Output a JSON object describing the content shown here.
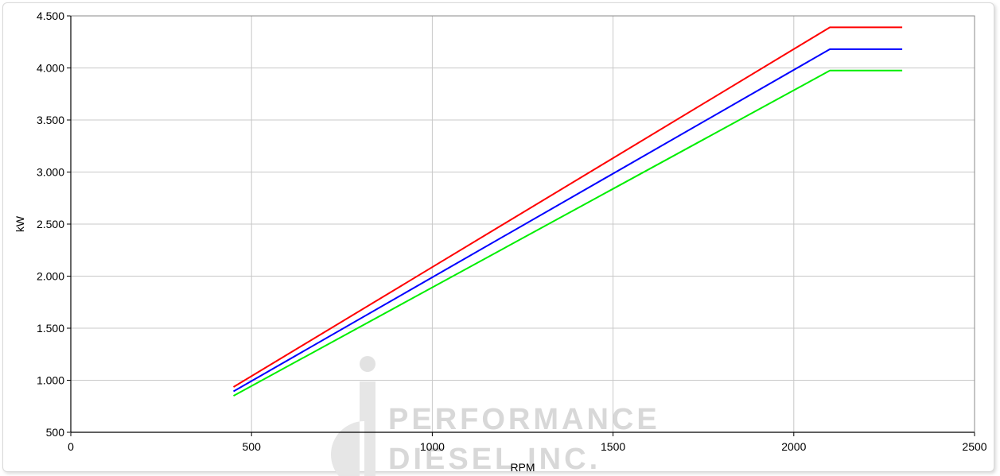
{
  "chart_data": {
    "type": "line",
    "xlabel": "RPM",
    "ylabel": "kW",
    "xlim": [
      0,
      2500
    ],
    "ylim": [
      500,
      4500
    ],
    "x_ticks": [
      "0",
      "500",
      "1000",
      "1500",
      "2000",
      "2500"
    ],
    "y_ticks": [
      "500",
      "1.000",
      "1.500",
      "2.000",
      "2.500",
      "3.000",
      "3.500",
      "4.000",
      "4.500"
    ],
    "grid": true,
    "series": [
      {
        "color": "#ff0000",
        "points": [
          [
            450,
            935
          ],
          [
            2100,
            4390
          ],
          [
            2300,
            4390
          ]
        ]
      },
      {
        "color": "#0000ff",
        "points": [
          [
            450,
            893
          ],
          [
            2100,
            4180
          ],
          [
            2300,
            4180
          ]
        ]
      },
      {
        "color": "#00ee00",
        "points": [
          [
            450,
            850
          ],
          [
            2100,
            3975
          ],
          [
            2300,
            3975
          ]
        ]
      }
    ]
  },
  "watermark": {
    "line1": "PERFORMANCE",
    "line2": "DIESEL INC."
  }
}
